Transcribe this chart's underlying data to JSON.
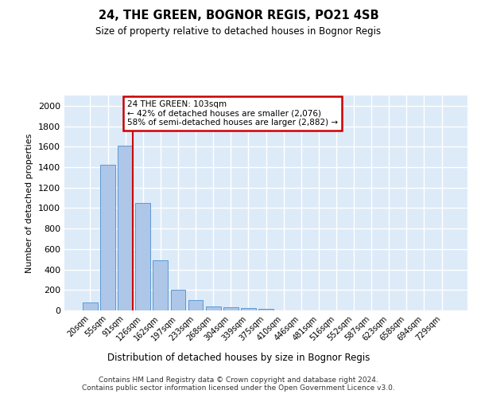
{
  "title1": "24, THE GREEN, BOGNOR REGIS, PO21 4SB",
  "title2": "Size of property relative to detached houses in Bognor Regis",
  "xlabel": "Distribution of detached houses by size in Bognor Regis",
  "ylabel": "Number of detached properties",
  "bin_labels": [
    "20sqm",
    "55sqm",
    "91sqm",
    "126sqm",
    "162sqm",
    "197sqm",
    "233sqm",
    "268sqm",
    "304sqm",
    "339sqm",
    "375sqm",
    "410sqm",
    "446sqm",
    "481sqm",
    "516sqm",
    "552sqm",
    "587sqm",
    "623sqm",
    "658sqm",
    "694sqm",
    "729sqm"
  ],
  "bar_values": [
    80,
    1420,
    1610,
    1050,
    490,
    205,
    105,
    42,
    28,
    22,
    18,
    0,
    0,
    0,
    0,
    0,
    0,
    0,
    0,
    0,
    0
  ],
  "bar_color": "#aec6e8",
  "bar_edge_color": "#5b9bd5",
  "background_color": "#ddeaf8",
  "grid_color": "#ffffff",
  "red_line_bin_index": 2,
  "annotation_text": "24 THE GREEN: 103sqm\n← 42% of detached houses are smaller (2,076)\n58% of semi-detached houses are larger (2,882) →",
  "annotation_box_color": "#ffffff",
  "annotation_box_edge": "#cc0000",
  "ylim": [
    0,
    2100
  ],
  "yticks": [
    0,
    200,
    400,
    600,
    800,
    1000,
    1200,
    1400,
    1600,
    1800,
    2000
  ],
  "footer_text": "Contains HM Land Registry data © Crown copyright and database right 2024.\nContains public sector information licensed under the Open Government Licence v3.0.",
  "red_line_color": "#cc0000",
  "fig_width": 6.0,
  "fig_height": 5.0,
  "dpi": 100
}
